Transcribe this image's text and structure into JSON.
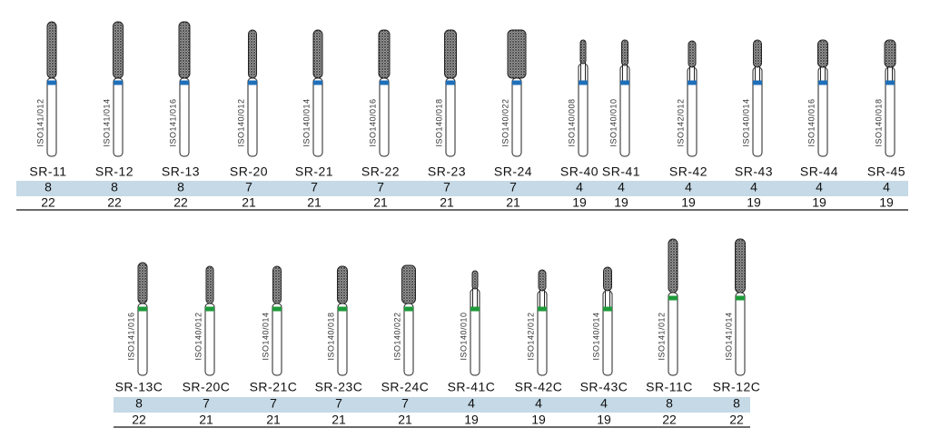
{
  "groups": [
    {
      "items": [
        {
          "iso": "ISO141/012",
          "code": "SR-11",
          "row1": "8",
          "row2": "22"
        },
        {
          "iso": "ISO141/014",
          "code": "SR-12",
          "row1": "8",
          "row2": "22"
        },
        {
          "iso": "ISO141/016",
          "code": "SR-13",
          "row1": "8",
          "row2": "22"
        },
        {
          "iso": "ISO140/012",
          "code": "SR-20",
          "row1": "7",
          "row2": "21"
        },
        {
          "iso": "ISO140/014",
          "code": "SR-21",
          "row1": "7",
          "row2": "21"
        },
        {
          "iso": "ISO140/016",
          "code": "SR-22",
          "row1": "7",
          "row2": "21"
        },
        {
          "iso": "ISO140/018",
          "code": "SR-23",
          "row1": "7",
          "row2": "21"
        },
        {
          "iso": "ISO140/022",
          "code": "SR-24",
          "row1": "7",
          "row2": "21"
        },
        {
          "iso": "ISO140/008",
          "code": "SR-40",
          "row1": "4",
          "row2": "19"
        },
        {
          "iso": "ISO140/010",
          "code": "SR-41",
          "row1": "4",
          "row2": "19"
        },
        {
          "iso": "ISO142/012",
          "code": "SR-42",
          "row1": "4",
          "row2": "19"
        },
        {
          "iso": "ISO140/014",
          "code": "SR-43",
          "row1": "4",
          "row2": "19"
        },
        {
          "iso": "ISO140/016",
          "code": "SR-44",
          "row1": "4",
          "row2": "19"
        },
        {
          "iso": "ISO140/018",
          "code": "SR-45",
          "row1": "4",
          "row2": "19"
        }
      ]
    },
    {
      "items": [
        {
          "iso": "ISO141/016",
          "code": "SR-13C",
          "row1": "8",
          "row2": "22"
        },
        {
          "iso": "ISO140/012",
          "code": "SR-20C",
          "row1": "7",
          "row2": "21"
        },
        {
          "iso": "ISO140/014",
          "code": "SR-21C",
          "row1": "7",
          "row2": "21"
        },
        {
          "iso": "ISO140/018",
          "code": "SR-23C",
          "row1": "7",
          "row2": "21"
        },
        {
          "iso": "ISO140/022",
          "code": "SR-24C",
          "row1": "7",
          "row2": "21"
        },
        {
          "iso": "ISO140/010",
          "code": "SR-41C",
          "row1": "4",
          "row2": "19"
        },
        {
          "iso": "ISO142/012",
          "code": "SR-42C",
          "row1": "4",
          "row2": "19"
        },
        {
          "iso": "ISO140/014",
          "code": "SR-43C",
          "row1": "4",
          "row2": "19"
        },
        {
          "iso": "ISO141/012",
          "code": "SR-11C",
          "row1": "8",
          "row2": "22"
        },
        {
          "iso": "ISO141/014",
          "code": "SR-12C",
          "row1": "8",
          "row2": "22"
        }
      ]
    }
  ]
}
